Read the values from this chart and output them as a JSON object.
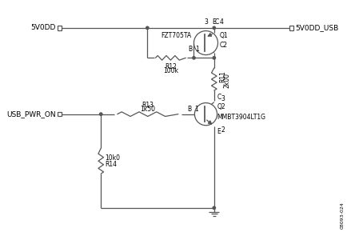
{
  "bg_color": "#ffffff",
  "line_color": "#555555",
  "text_color": "#000000",
  "fig_width": 4.35,
  "fig_height": 3.05,
  "dpi": 100,
  "label_5V0DD": "5V0DD",
  "label_5V0DD_USB": "5V0DD_USB",
  "label_USB_PWR_ON": "USB_PWR_ON",
  "label_Q1": "Q1",
  "label_Q1_device": "FZT705TA",
  "label_Q2": "Q2",
  "label_Q2_device": "MMBT3904LT1G",
  "label_R11": "R11",
  "label_R11_val": "2k00",
  "label_R12": "R12",
  "label_R12_val": "100k",
  "label_R13": "R13",
  "label_R13_val": "1k50",
  "label_R14": "R14",
  "label_R14_val": "10k0",
  "doc_num": "08093-024"
}
